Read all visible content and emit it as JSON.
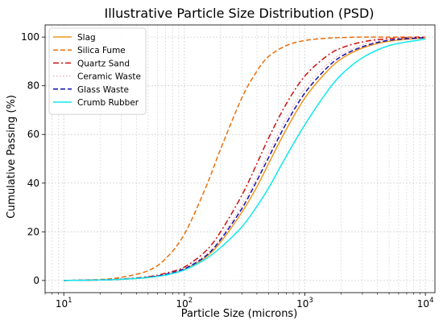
{
  "chart_data": {
    "type": "line",
    "title": "Illustrative Particle Size Distribution (PSD)",
    "xlabel": "Particle Size (microns)",
    "ylabel": "Cumulative Passing (%)",
    "x_scale": "log",
    "xlim": [
      7,
      12000
    ],
    "ylim": [
      -5,
      105
    ],
    "x_ticks": [
      {
        "value": 10,
        "base": "10",
        "exp": "1"
      },
      {
        "value": 100,
        "base": "10",
        "exp": "2"
      },
      {
        "value": 1000,
        "base": "10",
        "exp": "3"
      },
      {
        "value": 10000,
        "base": "10",
        "exp": "4"
      }
    ],
    "y_ticks": [
      0,
      20,
      40,
      60,
      80,
      100
    ],
    "grid": true,
    "legend_position": "top-left",
    "x": [
      10,
      20,
      30,
      50,
      70,
      100,
      150,
      200,
      300,
      400,
      500,
      700,
      1000,
      1500,
      2000,
      3000,
      5000,
      10000
    ],
    "series": [
      {
        "name": "Slag",
        "color": "#f0961e",
        "style": "solid",
        "values": [
          0,
          0.2,
          0.5,
          1.2,
          2.3,
          4.5,
          9.5,
          15.8,
          28,
          38.5,
          48,
          62,
          75,
          85.5,
          91,
          95.5,
          98.3,
          99.7
        ]
      },
      {
        "name": "Silica Fume",
        "color": "#e8700e",
        "style": "dashed",
        "values": [
          0,
          0.4,
          1.3,
          4,
          9,
          19,
          38,
          54,
          75,
          86,
          92,
          96.5,
          98.6,
          99.5,
          99.8,
          100,
          100,
          100
        ]
      },
      {
        "name": "Quartz Sand",
        "color": "#cc1010",
        "style": "dashdot",
        "values": [
          0,
          0.2,
          0.6,
          1.5,
          3,
          5.5,
          12,
          20,
          35,
          48,
          58.5,
          72.5,
          84,
          92,
          95.5,
          98,
          99.4,
          100
        ]
      },
      {
        "name": "Ceramic Waste",
        "color": "#f2b8b8",
        "style": "dotted",
        "values": [
          0,
          0.2,
          0.5,
          1.3,
          2.6,
          5,
          10.5,
          17.5,
          31,
          42.5,
          52.5,
          66.5,
          79,
          88.5,
          93,
          96.8,
          99,
          99.9
        ]
      },
      {
        "name": "Glass Waste",
        "color": "#1010b0",
        "style": "dashed",
        "values": [
          0,
          0.2,
          0.5,
          1.3,
          2.5,
          4.8,
          10,
          16.8,
          29.5,
          41,
          50.5,
          64.5,
          77,
          87,
          92,
          96,
          98.7,
          99.8
        ]
      },
      {
        "name": "Crumb Rubber",
        "color": "#10e8ec",
        "style": "solid",
        "values": [
          0,
          0.2,
          0.5,
          1.2,
          2.2,
          4.3,
          8.8,
          13.5,
          22,
          30.5,
          38,
          51,
          64,
          77,
          84.5,
          91.5,
          96.5,
          99.2
        ]
      }
    ]
  }
}
